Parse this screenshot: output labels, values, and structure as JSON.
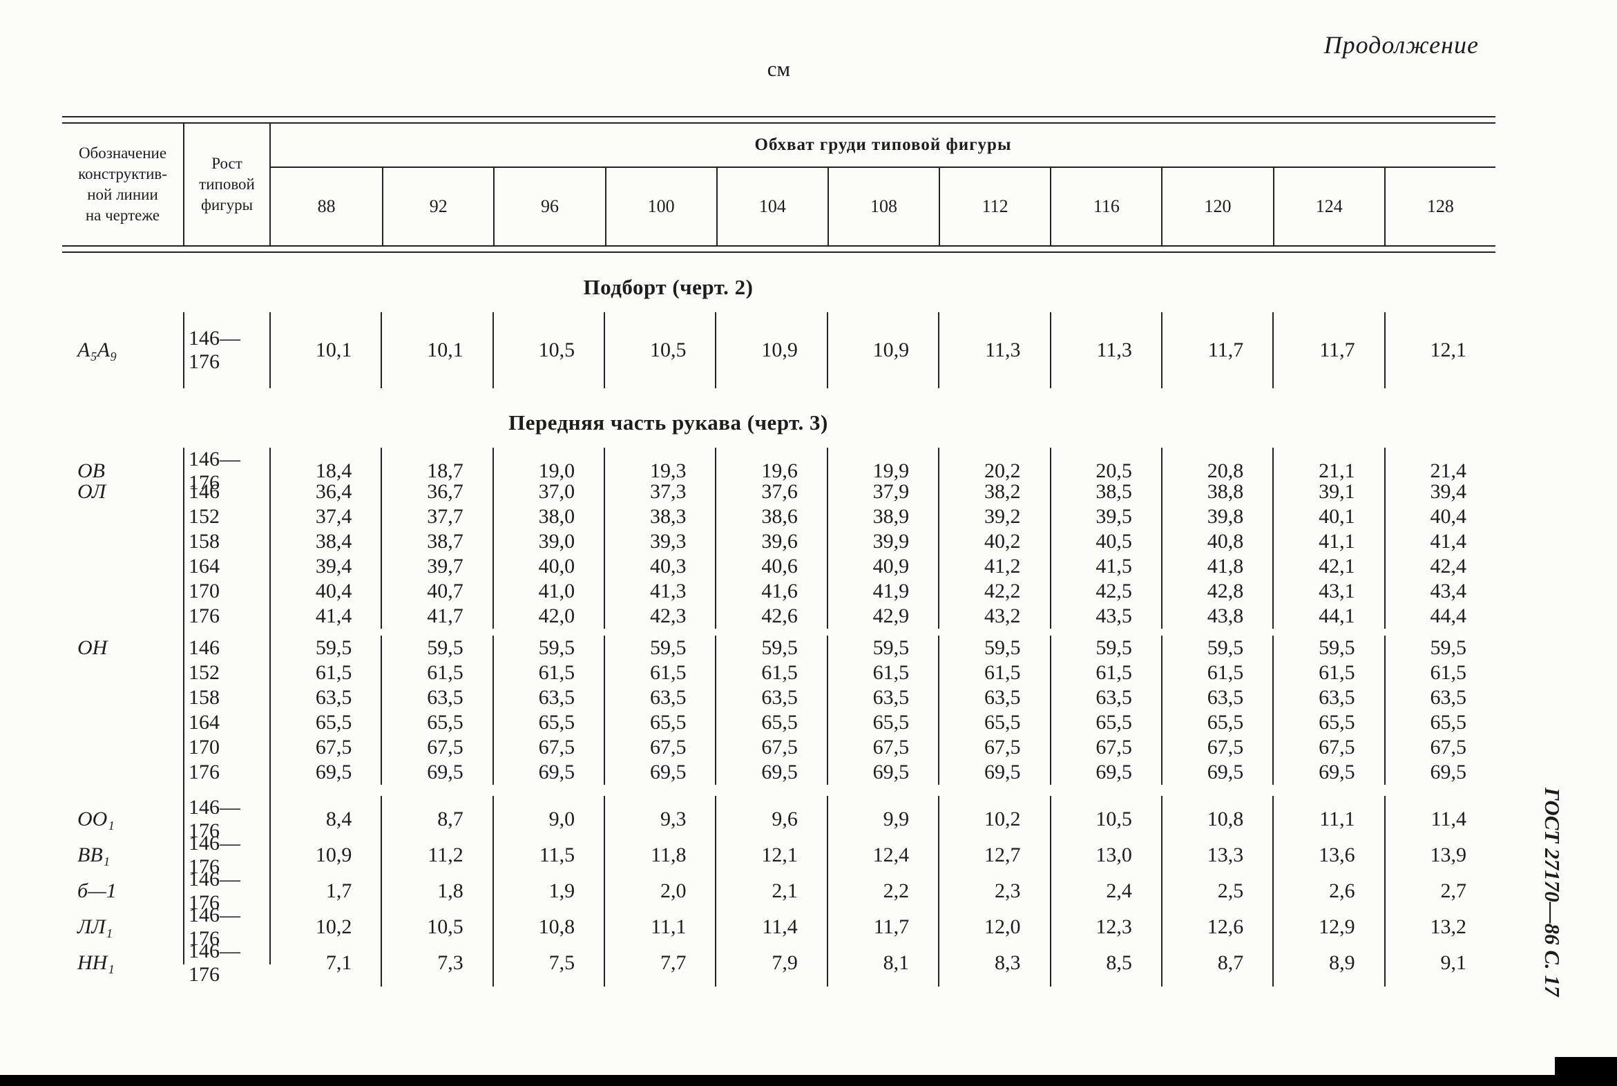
{
  "page": {
    "continuation": "Продолжение",
    "unit": "см",
    "side_label": "ГОСТ 27170—86 С. 17"
  },
  "table": {
    "col1_header": "Обозначение\nконструктив-\nной линии\nна чертеже",
    "col2_header": "Рост\nтиповой\nфигуры",
    "span_header": "Обхват груди типовой фигуры",
    "sizes": [
      "88",
      "92",
      "96",
      "100",
      "104",
      "108",
      "112",
      "116",
      "120",
      "124",
      "128"
    ]
  },
  "sections": [
    {
      "title": "Подборт (черт. 2)",
      "tall": true,
      "groups": [
        {
          "line": "А₅А₉",
          "entries": [
            {
              "height": "146—176",
              "values": [
                "10,1",
                "10,1",
                "10,5",
                "10,5",
                "10,9",
                "10,9",
                "11,3",
                "11,3",
                "11,7",
                "11,7",
                "12,1"
              ]
            }
          ]
        }
      ]
    },
    {
      "title": "Передняя часть рукава (черт. 3)",
      "tall": false,
      "groups": [
        {
          "line": "ОВ",
          "entries": [
            {
              "height": "146—176",
              "values": [
                "18,4",
                "18,7",
                "19,0",
                "19,3",
                "19,6",
                "19,9",
                "20,2",
                "20,5",
                "20,8",
                "21,1",
                "21,4"
              ]
            }
          ]
        },
        {
          "line": "ОЛ",
          "entries": [
            {
              "height": "146",
              "values": [
                "36,4",
                "36,7",
                "37,0",
                "37,3",
                "37,6",
                "37,9",
                "38,2",
                "38,5",
                "38,8",
                "39,1",
                "39,4"
              ]
            },
            {
              "height": "152",
              "values": [
                "37,4",
                "37,7",
                "38,0",
                "38,3",
                "38,6",
                "38,9",
                "39,2",
                "39,5",
                "39,8",
                "40,1",
                "40,4"
              ]
            },
            {
              "height": "158",
              "values": [
                "38,4",
                "38,7",
                "39,0",
                "39,3",
                "39,6",
                "39,9",
                "40,2",
                "40,5",
                "40,8",
                "41,1",
                "41,4"
              ]
            },
            {
              "height": "164",
              "values": [
                "39,4",
                "39,7",
                "40,0",
                "40,3",
                "40,6",
                "40,9",
                "41,2",
                "41,5",
                "41,8",
                "42,1",
                "42,4"
              ]
            },
            {
              "height": "170",
              "values": [
                "40,4",
                "40,7",
                "41,0",
                "41,3",
                "41,6",
                "41,9",
                "42,2",
                "42,5",
                "42,8",
                "43,1",
                "43,4"
              ]
            },
            {
              "height": "176",
              "values": [
                "41,4",
                "41,7",
                "42,0",
                "42,3",
                "42,6",
                "42,9",
                "43,2",
                "43,5",
                "43,8",
                "44,1",
                "44,4"
              ]
            }
          ]
        },
        {
          "line": "ОН",
          "entries": [
            {
              "height": "146",
              "values": [
                "59,5",
                "59,5",
                "59,5",
                "59,5",
                "59,5",
                "59,5",
                "59,5",
                "59,5",
                "59,5",
                "59,5",
                "59,5"
              ]
            },
            {
              "height": "152",
              "values": [
                "61,5",
                "61,5",
                "61,5",
                "61,5",
                "61,5",
                "61,5",
                "61,5",
                "61,5",
                "61,5",
                "61,5",
                "61,5"
              ]
            },
            {
              "height": "158",
              "values": [
                "63,5",
                "63,5",
                "63,5",
                "63,5",
                "63,5",
                "63,5",
                "63,5",
                "63,5",
                "63,5",
                "63,5",
                "63,5"
              ]
            },
            {
              "height": "164",
              "values": [
                "65,5",
                "65,5",
                "65,5",
                "65,5",
                "65,5",
                "65,5",
                "65,5",
                "65,5",
                "65,5",
                "65,5",
                "65,5"
              ]
            },
            {
              "height": "170",
              "values": [
                "67,5",
                "67,5",
                "67,5",
                "67,5",
                "67,5",
                "67,5",
                "67,5",
                "67,5",
                "67,5",
                "67,5",
                "67,5"
              ]
            },
            {
              "height": "176",
              "values": [
                "69,5",
                "69,5",
                "69,5",
                "69,5",
                "69,5",
                "69,5",
                "69,5",
                "69,5",
                "69,5",
                "69,5",
                "69,5"
              ]
            }
          ]
        },
        {
          "line": "ОО₁",
          "entries": [
            {
              "height": "146—176",
              "values": [
                "8,4",
                "8,7",
                "9,0",
                "9,3",
                "9,6",
                "9,9",
                "10,2",
                "10,5",
                "10,8",
                "11,1",
                "11,4"
              ]
            }
          ]
        },
        {
          "line": "ВВ₁",
          "entries": [
            {
              "height": "146—176",
              "values": [
                "10,9",
                "11,2",
                "11,5",
                "11,8",
                "12,1",
                "12,4",
                "12,7",
                "13,0",
                "13,3",
                "13,6",
                "13,9"
              ]
            }
          ]
        },
        {
          "line": "б—1",
          "entries": [
            {
              "height": "146—176",
              "values": [
                "1,7",
                "1,8",
                "1,9",
                "2,0",
                "2,1",
                "2,2",
                "2,3",
                "2,4",
                "2,5",
                "2,6",
                "2,7"
              ]
            }
          ]
        },
        {
          "line": "ЛЛ₁",
          "entries": [
            {
              "height": "146—176",
              "values": [
                "10,2",
                "10,5",
                "10,8",
                "11,1",
                "11,4",
                "11,7",
                "12,0",
                "12,3",
                "12,6",
                "12,9",
                "13,2"
              ]
            }
          ]
        },
        {
          "line": "НН₁",
          "entries": [
            {
              "height": "146—176",
              "values": [
                "7,1",
                "7,3",
                "7,5",
                "7,7",
                "7,9",
                "8,1",
                "8,3",
                "8,5",
                "8,7",
                "8,9",
                "9,1"
              ]
            }
          ]
        }
      ]
    }
  ]
}
